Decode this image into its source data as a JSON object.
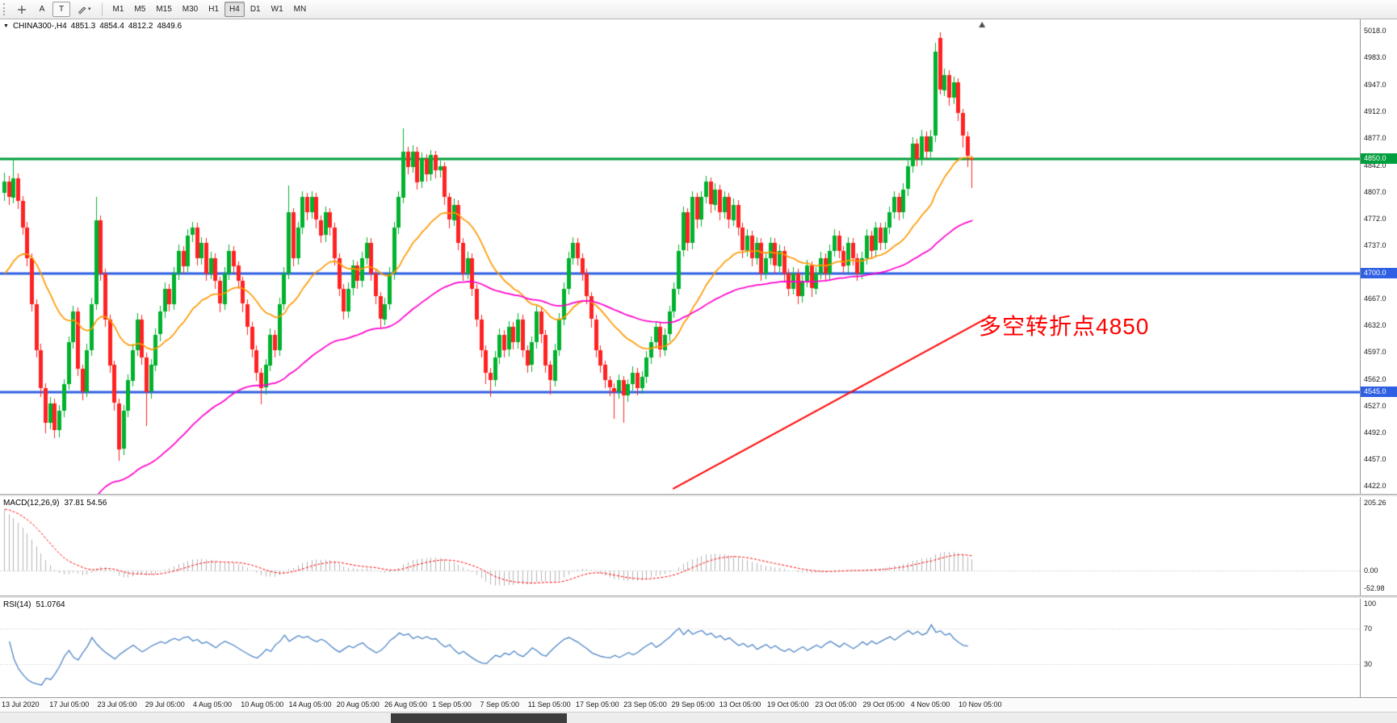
{
  "toolbar": {
    "tools": [
      {
        "label": "A"
      },
      {
        "label": "T"
      }
    ],
    "timeframes": [
      "M1",
      "M5",
      "M15",
      "M30",
      "H1",
      "H4",
      "D1",
      "W1",
      "MN"
    ],
    "active_timeframe": "H4"
  },
  "quote_line": {
    "symbol": "CHINA300-,H4",
    "open": "4851.3",
    "high": "4854.4",
    "low": "4812.2",
    "close": "4849.6"
  },
  "chart_data": {
    "type": "candlestick",
    "symbol": "CHINA300-",
    "timeframe": "H4",
    "ylim": [
      4422,
      5018
    ],
    "y_ticks": [
      "5018.0",
      "4983.0",
      "4947.0",
      "4912.0",
      "4877.0",
      "4842.0",
      "4807.0",
      "4772.0",
      "4737.0",
      "4702.0",
      "4667.0",
      "4632.0",
      "4597.0",
      "4562.0",
      "4527.0",
      "4492.0",
      "4457.0",
      "4422.0"
    ],
    "x_labels": [
      "13 Jul 2020",
      "17 Jul 05:00",
      "23 Jul 05:00",
      "29 Jul 05:00",
      "4 Aug 05:00",
      "10 Aug 05:00",
      "14 Aug 05:00",
      "20 Aug 05:00",
      "26 Aug 05:00",
      "1 Sep 05:00",
      "7 Sep 05:00",
      "11 Sep 05:00",
      "17 Sep 05:00",
      "23 Sep 05:00",
      "29 Sep 05:00",
      "13 Oct 05:00",
      "19 Oct 05:00",
      "23 Oct 05:00",
      "29 Oct 05:00",
      "4 Nov 05:00",
      "10 Nov 05:00"
    ],
    "candle_up_color": "#00b22d",
    "candle_down_color": "#ff2222",
    "ohlc": [
      [
        4805,
        4832,
        4795,
        4820
      ],
      [
        4820,
        4828,
        4790,
        4800
      ],
      [
        4800,
        4850,
        4792,
        4825
      ],
      [
        4825,
        4831,
        4785,
        4795
      ],
      [
        4795,
        4801,
        4750,
        4760
      ],
      [
        4760,
        4768,
        4710,
        4720
      ],
      [
        4720,
        4726,
        4650,
        4660
      ],
      [
        4660,
        4666,
        4590,
        4600
      ],
      [
        4600,
        4608,
        4538,
        4550
      ],
      [
        4550,
        4556,
        4490,
        4505
      ],
      [
        4505,
        4538,
        4496,
        4530
      ],
      [
        4530,
        4536,
        4484,
        4495
      ],
      [
        4495,
        4528,
        4486,
        4520
      ],
      [
        4520,
        4562,
        4512,
        4555
      ],
      [
        4555,
        4618,
        4548,
        4610
      ],
      [
        4610,
        4658,
        4602,
        4650
      ],
      [
        4650,
        4656,
        4566,
        4575
      ],
      [
        4575,
        4581,
        4534,
        4545
      ],
      [
        4545,
        4608,
        4538,
        4600
      ],
      [
        4600,
        4668,
        4592,
        4660
      ],
      [
        4660,
        4800,
        4652,
        4770
      ],
      [
        4770,
        4776,
        4690,
        4700
      ],
      [
        4700,
        4706,
        4630,
        4640
      ],
      [
        4640,
        4646,
        4570,
        4580
      ],
      [
        4580,
        4586,
        4520,
        4530
      ],
      [
        4530,
        4536,
        4455,
        4470
      ],
      [
        4470,
        4528,
        4462,
        4520
      ],
      [
        4520,
        4568,
        4512,
        4560
      ],
      [
        4560,
        4608,
        4552,
        4600
      ],
      [
        4600,
        4648,
        4592,
        4640
      ],
      [
        4640,
        4646,
        4580,
        4590
      ],
      [
        4590,
        4596,
        4500,
        4545
      ],
      [
        4545,
        4588,
        4536,
        4580
      ],
      [
        4580,
        4628,
        4572,
        4620
      ],
      [
        4620,
        4658,
        4612,
        4650
      ],
      [
        4650,
        4688,
        4642,
        4680
      ],
      [
        4680,
        4686,
        4650,
        4660
      ],
      [
        4660,
        4708,
        4652,
        4700
      ],
      [
        4700,
        4738,
        4692,
        4730
      ],
      [
        4730,
        4736,
        4700,
        4710
      ],
      [
        4710,
        4758,
        4702,
        4750
      ],
      [
        4750,
        4768,
        4742,
        4760
      ],
      [
        4760,
        4766,
        4710,
        4720
      ],
      [
        4720,
        4748,
        4712,
        4740
      ],
      [
        4740,
        4746,
        4690,
        4700
      ],
      [
        4700,
        4728,
        4692,
        4720
      ],
      [
        4720,
        4726,
        4680,
        4690
      ],
      [
        4690,
        4696,
        4650,
        4660
      ],
      [
        4660,
        4708,
        4652,
        4700
      ],
      [
        4700,
        4738,
        4692,
        4730
      ],
      [
        4730,
        4736,
        4700,
        4710
      ],
      [
        4710,
        4716,
        4680,
        4690
      ],
      [
        4690,
        4696,
        4650,
        4660
      ],
      [
        4660,
        4666,
        4620,
        4630
      ],
      [
        4630,
        4636,
        4590,
        4600
      ],
      [
        4600,
        4606,
        4560,
        4570
      ],
      [
        4570,
        4576,
        4528,
        4550
      ],
      [
        4550,
        4588,
        4542,
        4580
      ],
      [
        4580,
        4628,
        4572,
        4620
      ],
      [
        4620,
        4626,
        4590,
        4600
      ],
      [
        4600,
        4668,
        4592,
        4660
      ],
      [
        4660,
        4708,
        4652,
        4700
      ],
      [
        4700,
        4815,
        4692,
        4780
      ],
      [
        4780,
        4786,
        4710,
        4720
      ],
      [
        4720,
        4768,
        4712,
        4760
      ],
      [
        4760,
        4808,
        4752,
        4800
      ],
      [
        4800,
        4806,
        4770,
        4780
      ],
      [
        4780,
        4808,
        4772,
        4800
      ],
      [
        4800,
        4806,
        4760,
        4770
      ],
      [
        4770,
        4776,
        4740,
        4750
      ],
      [
        4750,
        4788,
        4742,
        4780
      ],
      [
        4780,
        4786,
        4750,
        4760
      ],
      [
        4760,
        4766,
        4710,
        4720
      ],
      [
        4720,
        4726,
        4670,
        4680
      ],
      [
        4680,
        4686,
        4640,
        4650
      ],
      [
        4650,
        4688,
        4642,
        4680
      ],
      [
        4680,
        4718,
        4672,
        4710
      ],
      [
        4710,
        4716,
        4680,
        4690
      ],
      [
        4690,
        4728,
        4682,
        4720
      ],
      [
        4720,
        4748,
        4712,
        4740
      ],
      [
        4740,
        4746,
        4690,
        4700
      ],
      [
        4700,
        4706,
        4660,
        4670
      ],
      [
        4670,
        4676,
        4630,
        4640
      ],
      [
        4640,
        4668,
        4632,
        4660
      ],
      [
        4660,
        4708,
        4652,
        4700
      ],
      [
        4700,
        4768,
        4692,
        4760
      ],
      [
        4760,
        4808,
        4752,
        4800
      ],
      [
        4800,
        4890,
        4792,
        4860
      ],
      [
        4860,
        4866,
        4830,
        4840
      ],
      [
        4840,
        4868,
        4832,
        4860
      ],
      [
        4860,
        4866,
        4810,
        4820
      ],
      [
        4820,
        4858,
        4812,
        4850
      ],
      [
        4850,
        4856,
        4820,
        4830
      ],
      [
        4830,
        4862,
        4822,
        4855
      ],
      [
        4855,
        4861,
        4825,
        4835
      ],
      [
        4835,
        4848,
        4826,
        4840
      ],
      [
        4840,
        4846,
        4790,
        4800
      ],
      [
        4800,
        4806,
        4760,
        4770
      ],
      [
        4770,
        4798,
        4762,
        4790
      ],
      [
        4790,
        4796,
        4730,
        4740
      ],
      [
        4740,
        4746,
        4690,
        4700
      ],
      [
        4700,
        4728,
        4692,
        4720
      ],
      [
        4720,
        4726,
        4670,
        4680
      ],
      [
        4680,
        4686,
        4630,
        4640
      ],
      [
        4640,
        4646,
        4590,
        4600
      ],
      [
        4600,
        4606,
        4555,
        4570
      ],
      [
        4570,
        4576,
        4538,
        4560
      ],
      [
        4560,
        4598,
        4552,
        4590
      ],
      [
        4590,
        4628,
        4582,
        4620
      ],
      [
        4620,
        4626,
        4590,
        4600
      ],
      [
        4600,
        4638,
        4592,
        4630
      ],
      [
        4630,
        4636,
        4600,
        4610
      ],
      [
        4610,
        4648,
        4602,
        4640
      ],
      [
        4640,
        4646,
        4590,
        4600
      ],
      [
        4600,
        4606,
        4570,
        4580
      ],
      [
        4580,
        4618,
        4572,
        4610
      ],
      [
        4610,
        4658,
        4602,
        4650
      ],
      [
        4650,
        4656,
        4610,
        4620
      ],
      [
        4620,
        4626,
        4570,
        4580
      ],
      [
        4580,
        4586,
        4542,
        4560
      ],
      [
        4560,
        4608,
        4552,
        4600
      ],
      [
        4600,
        4648,
        4592,
        4640
      ],
      [
        4640,
        4688,
        4632,
        4680
      ],
      [
        4680,
        4728,
        4672,
        4720
      ],
      [
        4720,
        4748,
        4712,
        4740
      ],
      [
        4740,
        4746,
        4710,
        4720
      ],
      [
        4720,
        4726,
        4690,
        4700
      ],
      [
        4700,
        4706,
        4660,
        4670
      ],
      [
        4670,
        4676,
        4630,
        4640
      ],
      [
        4640,
        4646,
        4590,
        4600
      ],
      [
        4600,
        4606,
        4570,
        4580
      ],
      [
        4580,
        4586,
        4550,
        4560
      ],
      [
        4560,
        4566,
        4540,
        4550
      ],
      [
        4550,
        4556,
        4510,
        4545
      ],
      [
        4545,
        4568,
        4536,
        4560
      ],
      [
        4560,
        4566,
        4505,
        4540
      ],
      [
        4540,
        4562,
        4532,
        4555
      ],
      [
        4555,
        4578,
        4546,
        4570
      ],
      [
        4570,
        4576,
        4540,
        4550
      ],
      [
        4550,
        4572,
        4542,
        4565
      ],
      [
        4565,
        4598,
        4556,
        4590
      ],
      [
        4590,
        4618,
        4582,
        4610
      ],
      [
        4610,
        4638,
        4602,
        4630
      ],
      [
        4630,
        4636,
        4590,
        4600
      ],
      [
        4600,
        4628,
        4592,
        4620
      ],
      [
        4620,
        4658,
        4612,
        4650
      ],
      [
        4650,
        4688,
        4642,
        4680
      ],
      [
        4680,
        4738,
        4672,
        4730
      ],
      [
        4730,
        4788,
        4722,
        4780
      ],
      [
        4780,
        4786,
        4730,
        4740
      ],
      [
        4740,
        4808,
        4732,
        4800
      ],
      [
        4800,
        4806,
        4760,
        4770
      ],
      [
        4770,
        4808,
        4762,
        4800
      ],
      [
        4800,
        4828,
        4792,
        4820
      ],
      [
        4820,
        4826,
        4780,
        4790
      ],
      [
        4790,
        4818,
        4782,
        4810
      ],
      [
        4810,
        4816,
        4770,
        4780
      ],
      [
        4780,
        4808,
        4772,
        4800
      ],
      [
        4800,
        4806,
        4760,
        4770
      ],
      [
        4770,
        4798,
        4762,
        4790
      ],
      [
        4790,
        4796,
        4750,
        4760
      ],
      [
        4760,
        4766,
        4720,
        4730
      ],
      [
        4730,
        4758,
        4722,
        4750
      ],
      [
        4750,
        4756,
        4710,
        4720
      ],
      [
        4720,
        4748,
        4712,
        4740
      ],
      [
        4740,
        4746,
        4690,
        4700
      ],
      [
        4700,
        4728,
        4692,
        4720
      ],
      [
        4720,
        4748,
        4712,
        4740
      ],
      [
        4740,
        4746,
        4700,
        4710
      ],
      [
        4710,
        4738,
        4702,
        4730
      ],
      [
        4730,
        4736,
        4690,
        4700
      ],
      [
        4700,
        4706,
        4670,
        4680
      ],
      [
        4680,
        4708,
        4672,
        4700
      ],
      [
        4700,
        4706,
        4660,
        4670
      ],
      [
        4670,
        4698,
        4662,
        4690
      ],
      [
        4690,
        4718,
        4682,
        4710
      ],
      [
        4710,
        4716,
        4670,
        4680
      ],
      [
        4680,
        4708,
        4672,
        4700
      ],
      [
        4700,
        4728,
        4692,
        4720
      ],
      [
        4720,
        4726,
        4690,
        4700
      ],
      [
        4700,
        4738,
        4692,
        4730
      ],
      [
        4730,
        4758,
        4722,
        4750
      ],
      [
        4750,
        4756,
        4720,
        4730
      ],
      [
        4730,
        4736,
        4700,
        4710
      ],
      [
        4710,
        4748,
        4702,
        4740
      ],
      [
        4740,
        4746,
        4710,
        4720
      ],
      [
        4720,
        4726,
        4690,
        4700
      ],
      [
        4700,
        4728,
        4692,
        4720
      ],
      [
        4720,
        4758,
        4712,
        4750
      ],
      [
        4750,
        4756,
        4720,
        4730
      ],
      [
        4730,
        4768,
        4722,
        4760
      ],
      [
        4760,
        4766,
        4730,
        4740
      ],
      [
        4740,
        4768,
        4732,
        4760
      ],
      [
        4760,
        4788,
        4752,
        4780
      ],
      [
        4780,
        4808,
        4772,
        4800
      ],
      [
        4800,
        4806,
        4770,
        4780
      ],
      [
        4780,
        4818,
        4772,
        4810
      ],
      [
        4810,
        4848,
        4802,
        4840
      ],
      [
        4840,
        4878,
        4832,
        4870
      ],
      [
        4870,
        4876,
        4840,
        4850
      ],
      [
        4850,
        4888,
        4842,
        4880
      ],
      [
        4880,
        4886,
        4850,
        4860
      ],
      [
        4860,
        4888,
        4852,
        4880
      ],
      [
        4880,
        5002,
        4872,
        4990
      ],
      [
        5008,
        5016,
        4935,
        4940
      ],
      [
        4940,
        4968,
        4932,
        4960
      ],
      [
        4960,
        4966,
        4920,
        4930
      ],
      [
        4930,
        4958,
        4922,
        4950
      ],
      [
        4950,
        4956,
        4900,
        4910
      ],
      [
        4910,
        4916,
        4865,
        4880
      ],
      [
        4880,
        4886,
        4840,
        4855
      ],
      [
        4851.3,
        4854.4,
        4812.2,
        4849.6
      ]
    ],
    "overlays": {
      "ma_fast": {
        "type": "ema",
        "period": 25,
        "color": "#ff9900"
      },
      "ma_slow": {
        "type": "ema",
        "period": 80,
        "color": "#ff00cc"
      },
      "hlines": [
        {
          "price": 4850,
          "label": "4850.0",
          "color": "#009e3c",
          "width": 3
        },
        {
          "price": 4700,
          "label": "4700.0",
          "color": "#2f5fe3",
          "width": 3
        },
        {
          "price": 4545,
          "label": "4545.0",
          "color": "#2f5fe3",
          "width": 3
        }
      ],
      "trendline": {
        "from_index": 146,
        "from_price": 4418,
        "to_index": 214,
        "to_price": 4640,
        "color": "#ff0000",
        "width": 2
      },
      "annotation": {
        "text": "多空转折点4850",
        "color": "#ff0000",
        "anchor_price": 4632
      }
    },
    "indicators": {
      "macd": {
        "name": "MACD(12,26,9)",
        "values": "37.81 54.56",
        "axis_labels": [
          "205.26",
          "0.00",
          "-52.98"
        ],
        "ylim": [
          -60,
          212
        ],
        "hist_color": "#b4b4b4",
        "signal_color": "#ff0000"
      },
      "rsi": {
        "name": "RSI(14)",
        "value": "51.0764",
        "axis_labels": [
          "100",
          "70",
          "30"
        ],
        "levels": [
          70,
          30
        ],
        "color": "#4f86c6",
        "ylim": [
          0,
          100
        ]
      }
    }
  }
}
